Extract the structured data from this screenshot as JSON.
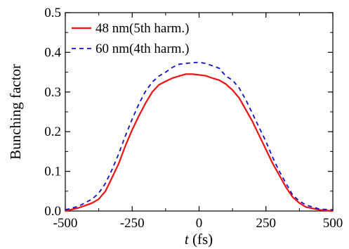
{
  "chart_data": {
    "type": "line",
    "xlabel_italic": "t",
    "xlabel_unit": " (fs)",
    "ylabel": "Bunching factor",
    "xlim": [
      -500,
      500
    ],
    "ylim": [
      0.0,
      0.5
    ],
    "x_ticks": [
      -500,
      -250,
      0,
      250,
      500
    ],
    "x_tick_labels": [
      "-500",
      "-250",
      "0",
      "250",
      "500"
    ],
    "y_ticks": [
      0.0,
      0.1,
      0.2,
      0.3,
      0.4,
      0.5
    ],
    "y_tick_labels": [
      "0.0",
      "0.1",
      "0.2",
      "0.3",
      "0.4",
      "0.5"
    ],
    "grid": false,
    "legend_position": "top-left",
    "series": [
      {
        "name": "48 nm(5th harm.)",
        "color": "#ee1111",
        "style": "solid",
        "x": [
          -500,
          -450,
          -400,
          -375,
          -350,
          -325,
          -300,
          -275,
          -250,
          -225,
          -200,
          -175,
          -150,
          -125,
          -100,
          -75,
          -50,
          -25,
          0,
          25,
          50,
          75,
          100,
          125,
          150,
          175,
          200,
          225,
          250,
          275,
          300,
          325,
          350,
          375,
          400,
          450,
          500
        ],
        "y": [
          0.0,
          0.008,
          0.02,
          0.03,
          0.05,
          0.085,
          0.12,
          0.165,
          0.205,
          0.24,
          0.272,
          0.3,
          0.318,
          0.327,
          0.335,
          0.34,
          0.345,
          0.345,
          0.343,
          0.341,
          0.335,
          0.33,
          0.32,
          0.305,
          0.285,
          0.255,
          0.225,
          0.19,
          0.155,
          0.12,
          0.09,
          0.06,
          0.035,
          0.02,
          0.01,
          0.003,
          0.0
        ]
      },
      {
        "name": "60 nm(4th harm.)",
        "color": "#1111cc",
        "style": "dashed",
        "x": [
          -500,
          -450,
          -400,
          -375,
          -350,
          -325,
          -300,
          -275,
          -250,
          -225,
          -200,
          -175,
          -150,
          -125,
          -100,
          -75,
          -50,
          -25,
          0,
          25,
          50,
          75,
          100,
          125,
          150,
          175,
          200,
          225,
          250,
          275,
          300,
          325,
          350,
          375,
          400,
          450,
          500
        ],
        "y": [
          0.003,
          0.012,
          0.03,
          0.045,
          0.07,
          0.105,
          0.145,
          0.19,
          0.232,
          0.27,
          0.302,
          0.325,
          0.34,
          0.35,
          0.362,
          0.37,
          0.372,
          0.374,
          0.375,
          0.372,
          0.366,
          0.36,
          0.34,
          0.33,
          0.31,
          0.28,
          0.245,
          0.21,
          0.175,
          0.135,
          0.1,
          0.07,
          0.04,
          0.025,
          0.015,
          0.005,
          0.003
        ]
      }
    ]
  }
}
